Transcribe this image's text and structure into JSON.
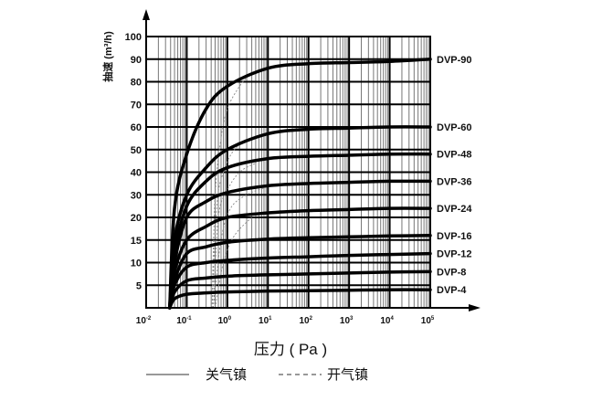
{
  "chart_data": {
    "type": "line",
    "xlabel": "压力 ( Pa )",
    "ylabel": "抽速 (m³/h)",
    "xscale": "log",
    "xlim": [
      0.01,
      100000
    ],
    "x_ticks": [
      {
        "base": "10",
        "exp": "-2"
      },
      {
        "base": "10",
        "exp": "-1"
      },
      {
        "base": "10",
        "exp": "0"
      },
      {
        "base": "10",
        "exp": "1"
      },
      {
        "base": "10",
        "exp": "2"
      },
      {
        "base": "10",
        "exp": "3"
      },
      {
        "base": "10",
        "exp": "4"
      },
      {
        "base": "10",
        "exp": "5"
      }
    ],
    "y_ticks": [
      5,
      10,
      15,
      20,
      30,
      40,
      50,
      60,
      70,
      80,
      90,
      100
    ],
    "y_scale_note": "ticks equally spaced",
    "ylim": [
      0,
      100
    ],
    "grid": true,
    "legend": {
      "placement": "bottom",
      "entries": [
        {
          "label": "关气镇",
          "style": "solid"
        },
        {
          "label": "开气镇",
          "style": "dashed"
        }
      ]
    },
    "series": [
      {
        "name": "DVP-90",
        "style": "solid",
        "x": [
          0.038,
          0.05,
          0.1,
          0.3,
          1,
          10,
          100,
          1000,
          10000,
          100000
        ],
        "y": [
          0,
          24,
          48,
          68,
          78,
          86,
          88,
          88.5,
          89,
          90
        ]
      },
      {
        "name": "DVP-60",
        "style": "solid",
        "x": [
          0.038,
          0.05,
          0.1,
          0.3,
          1,
          10,
          100,
          1000,
          10000,
          100000
        ],
        "y": [
          0,
          15,
          30,
          42,
          50,
          57,
          59,
          59.5,
          60,
          60
        ]
      },
      {
        "name": "DVP-48",
        "style": "solid",
        "x": [
          0.038,
          0.05,
          0.1,
          0.3,
          1,
          10,
          100,
          1000,
          10000,
          100000
        ],
        "y": [
          0,
          12,
          25,
          36,
          42,
          46,
          47,
          47.5,
          48,
          48
        ]
      },
      {
        "name": "DVP-36",
        "style": "solid",
        "x": [
          0.038,
          0.05,
          0.1,
          0.3,
          1,
          10,
          100,
          1000,
          10000,
          100000
        ],
        "y": [
          0,
          10,
          20,
          27,
          31,
          34,
          35,
          35.5,
          36,
          36
        ]
      },
      {
        "name": "DVP-24",
        "style": "solid",
        "x": [
          0.038,
          0.05,
          0.1,
          0.3,
          1,
          10,
          100,
          1000,
          10000,
          100000
        ],
        "y": [
          0,
          8,
          15,
          18,
          20,
          22,
          23,
          23.5,
          24,
          24
        ]
      },
      {
        "name": "DVP-16",
        "style": "solid",
        "x": [
          0.038,
          0.05,
          0.1,
          0.3,
          1,
          10,
          100,
          1000,
          10000,
          100000
        ],
        "y": [
          0,
          6,
          12,
          13.5,
          14.5,
          15.2,
          15.5,
          15.7,
          15.9,
          16
        ]
      },
      {
        "name": "DVP-12",
        "style": "solid",
        "x": [
          0.038,
          0.05,
          0.1,
          0.3,
          1,
          10,
          100,
          1000,
          10000,
          100000
        ],
        "y": [
          0,
          5,
          9,
          10,
          10.5,
          11,
          11.3,
          11.6,
          11.8,
          12
        ]
      },
      {
        "name": "DVP-8",
        "style": "solid",
        "x": [
          0.038,
          0.05,
          0.1,
          0.3,
          1,
          10,
          100,
          1000,
          10000,
          100000
        ],
        "y": [
          0,
          3.5,
          6,
          6.6,
          7,
          7.3,
          7.5,
          7.7,
          7.9,
          8
        ]
      },
      {
        "name": "DVP-4",
        "style": "solid",
        "x": [
          0.038,
          0.05,
          0.1,
          0.3,
          1,
          10,
          100,
          1000,
          10000,
          100000
        ],
        "y": [
          0,
          2,
          3,
          3.3,
          3.5,
          3.7,
          3.8,
          3.9,
          4,
          4
        ]
      }
    ],
    "dashed_series": [
      {
        "x": [
          0.42,
          0.5,
          0.7,
          1,
          2,
          4
        ],
        "y": [
          0,
          30,
          55,
          68,
          78,
          84
        ]
      },
      {
        "x": [
          0.42,
          0.55,
          0.8,
          1.5,
          4,
          10
        ],
        "y": [
          0,
          25,
          40,
          50,
          55,
          57
        ]
      },
      {
        "x": [
          0.45,
          0.6,
          1,
          2,
          5
        ],
        "y": [
          0,
          20,
          32,
          40,
          44
        ]
      },
      {
        "x": [
          0.45,
          0.7,
          1.2,
          3,
          8
        ],
        "y": [
          0,
          15,
          24,
          30,
          33
        ]
      },
      {
        "x": [
          0.5,
          0.8,
          1.5,
          4
        ],
        "y": [
          0,
          10,
          16,
          20
        ]
      }
    ]
  }
}
